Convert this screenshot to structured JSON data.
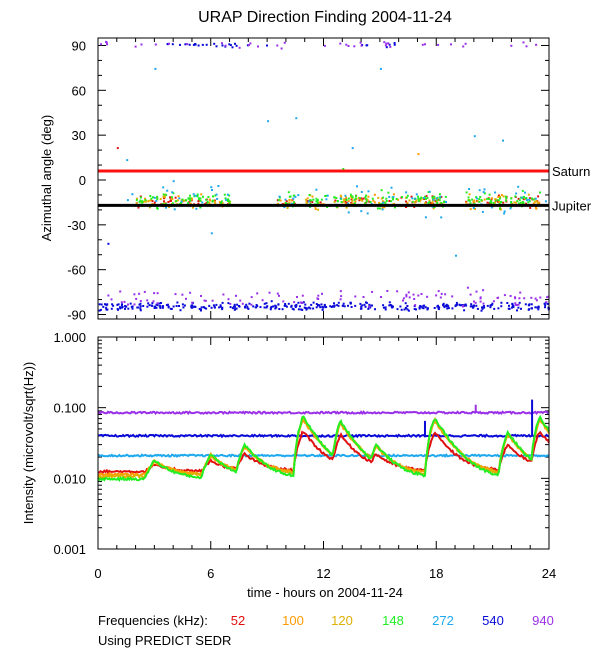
{
  "chart_data": {
    "title": "URAP Direction Finding  2004-11-24",
    "xlabel": "time - hours on 2004-11-24",
    "xlim": [
      0,
      24
    ],
    "xticks": [
      0,
      6,
      12,
      18,
      24
    ],
    "xtick_labels": [
      "0",
      "6",
      "12",
      "18",
      "24"
    ],
    "frequency_label": "Frequencies (kHz):",
    "source_note": "Using PREDICT SEDR",
    "frequencies": [
      {
        "name": "52",
        "color": "#e01010"
      },
      {
        "name": "100",
        "color": "#ff9a00"
      },
      {
        "name": "120",
        "color": "#e0b000"
      },
      {
        "name": "148",
        "color": "#22ee22"
      },
      {
        "name": "272",
        "color": "#1ea8ee"
      },
      {
        "name": "540",
        "color": "#0a0ad8"
      },
      {
        "name": "940",
        "color": "#9a30e8"
      }
    ],
    "panels": [
      {
        "type": "scatter",
        "ylabel": "Azimuthal angle (deg)",
        "ylim": [
          -93,
          95
        ],
        "yticks": [
          90,
          60,
          30,
          0,
          -30,
          -60,
          -90
        ],
        "ytick_labels": [
          "90",
          "60",
          "30",
          "0",
          "-30",
          "-60",
          "-90"
        ],
        "reference_lines": [
          {
            "name": "Saturn",
            "value": 6,
            "color": "#ff1010"
          },
          {
            "name": "Jupiter",
            "value": -17,
            "color": "#000000"
          }
        ],
        "clusters": [
          {
            "series": "52",
            "center": -14,
            "spread": 6,
            "segments": [
              [
                2.0,
                7.0
              ],
              [
                9.5,
                10.5
              ],
              [
                11.0,
                12.0
              ],
              [
                12.5,
                14.5
              ],
              [
                15.0,
                18.5
              ],
              [
                19.5,
                23.5
              ]
            ],
            "count": 120
          },
          {
            "series": "100",
            "center": -14,
            "spread": 7,
            "segments": [
              [
                2.0,
                7.0
              ],
              [
                9.5,
                10.5
              ],
              [
                11.0,
                12.0
              ],
              [
                12.5,
                18.5
              ],
              [
                19.5,
                23.5
              ]
            ],
            "count": 100
          },
          {
            "series": "120",
            "center": -14,
            "spread": 7,
            "segments": [
              [
                2.0,
                7.0
              ],
              [
                9.5,
                10.5
              ],
              [
                11.0,
                12.0
              ],
              [
                12.5,
                18.5
              ],
              [
                19.5,
                23.5
              ]
            ],
            "count": 100
          },
          {
            "series": "148",
            "center": -13,
            "spread": 8,
            "segments": [
              [
                2.0,
                7.0
              ],
              [
                9.5,
                10.5
              ],
              [
                11.0,
                12.2
              ],
              [
                12.5,
                18.5
              ],
              [
                19.5,
                23.5
              ]
            ],
            "count": 240
          },
          {
            "series": "272",
            "center": -12,
            "spread": 14,
            "segments": [
              [
                1.5,
                7.0
              ],
              [
                9.5,
                12.2
              ],
              [
                12.5,
                18.5
              ],
              [
                19.5,
                23.8
              ]
            ],
            "count": 90
          },
          {
            "series": "540",
            "center": -84,
            "spread": 4,
            "segments": [
              [
                0.0,
                24.0
              ]
            ],
            "count": 360
          },
          {
            "series": "540",
            "center": 91,
            "spread": 2,
            "segments": [
              [
                2.0,
                9.0
              ],
              [
                14.0,
                16.0
              ]
            ],
            "count": 30
          },
          {
            "series": "940",
            "center": -78,
            "spread": 8,
            "segments": [
              [
                0.0,
                24.0
              ]
            ],
            "count": 110
          },
          {
            "series": "940",
            "center": 91,
            "spread": 3,
            "segments": [
              [
                0.0,
                24.0
              ]
            ],
            "count": 40
          }
        ]
      },
      {
        "type": "line",
        "ylabel": "Intensity (microvolt/sqrt(Hz))",
        "ylim": [
          0.001,
          1.0
        ],
        "yscale": "log",
        "yticks": [
          1.0,
          0.1,
          0.01,
          0.001
        ],
        "ytick_labels": [
          "1.000",
          "0.100",
          "0.010",
          "0.001"
        ],
        "background_levels": [
          {
            "series": "940",
            "value": 0.085
          },
          {
            "series": "540",
            "value": 0.04
          },
          {
            "series": "272",
            "value": 0.021
          }
        ],
        "baselines": [
          {
            "series": "52",
            "value": 0.0125
          },
          {
            "series": "100",
            "value": 0.0113
          },
          {
            "series": "120",
            "value": 0.0107
          },
          {
            "series": "148",
            "value": 0.0098
          }
        ],
        "bursts": [
          {
            "start": 2.5,
            "peak": 0.018
          },
          {
            "start": 5.5,
            "peak": 0.022
          },
          {
            "start": 7.3,
            "peak": 0.03
          },
          {
            "start": 10.4,
            "peak": 0.075
          },
          {
            "start": 12.4,
            "peak": 0.065
          },
          {
            "start": 14.3,
            "peak": 0.03
          },
          {
            "start": 17.4,
            "peak": 0.072
          },
          {
            "start": 21.3,
            "peak": 0.045
          },
          {
            "start": 23.0,
            "peak": 0.075
          }
        ],
        "spikes": [
          {
            "series": "940",
            "x": 20.1,
            "value": 0.11
          },
          {
            "series": "540",
            "x": 23.1,
            "value": 0.13
          },
          {
            "series": "540",
            "x": 17.4,
            "value": 0.065
          }
        ]
      }
    ]
  }
}
